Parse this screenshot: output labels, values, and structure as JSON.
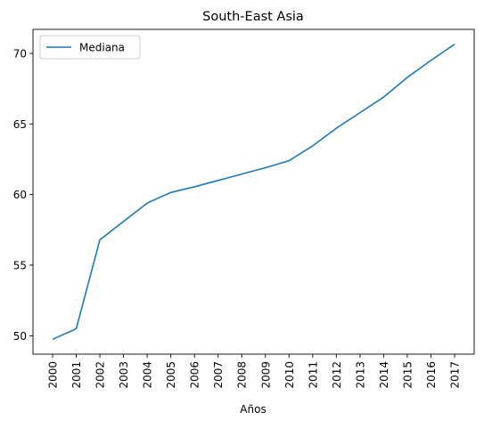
{
  "chart_data": {
    "type": "line",
    "title": "South-East Asia",
    "xlabel": "Años",
    "ylabel": "",
    "categories": [
      "2000",
      "2001",
      "2002",
      "2003",
      "2004",
      "2005",
      "2006",
      "2007",
      "2008",
      "2009",
      "2010",
      "2011",
      "2012",
      "2013",
      "2014",
      "2015",
      "2016",
      "2017"
    ],
    "series": [
      {
        "name": "Mediana",
        "color": "#1f77b4",
        "values": [
          49.75,
          50.5,
          56.8,
          58.1,
          59.4,
          60.15,
          60.55,
          61.0,
          61.45,
          61.9,
          62.4,
          63.45,
          64.7,
          65.8,
          66.9,
          68.3,
          69.5,
          70.65
        ]
      }
    ],
    "ylim": [
      48.7,
      71.7
    ],
    "yticks": [
      50,
      55,
      60,
      65,
      70
    ],
    "legend": "top-left",
    "grid": false
  }
}
